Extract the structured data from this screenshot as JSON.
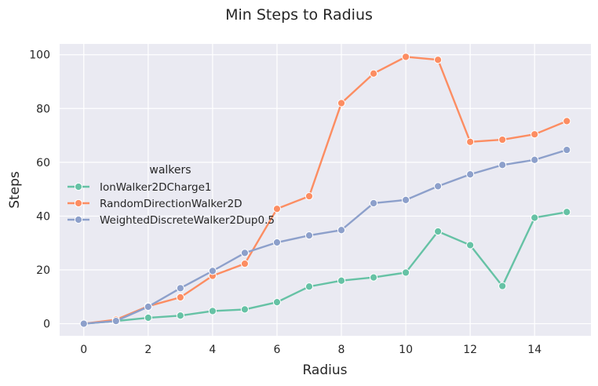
{
  "chart_data": {
    "type": "line",
    "title": "Min Steps to Radius",
    "xlabel": "Radius",
    "ylabel": "Steps",
    "xlim": [
      -0.75,
      15.75
    ],
    "ylim": [
      -4.5,
      104
    ],
    "xticks": [
      0,
      2,
      4,
      6,
      8,
      10,
      12,
      14
    ],
    "yticks": [
      0,
      20,
      40,
      60,
      80,
      100
    ],
    "grid": true,
    "background": "#eaeaf2",
    "legend": {
      "title": "walkers",
      "placement": "center-left"
    },
    "x": [
      0,
      1,
      2,
      3,
      4,
      5,
      6,
      7,
      8,
      9,
      10,
      11,
      12,
      13,
      14,
      15
    ],
    "series": [
      {
        "name": "IonWalker2DCharge1",
        "color": "#66c2a5",
        "values": [
          0,
          1,
          2.2,
          3,
          4.7,
          5.3,
          8,
          13.8,
          16,
          17.2,
          19,
          34.3,
          29.2,
          14,
          39.4,
          41.5
        ]
      },
      {
        "name": "RandomDirectionWalker2D",
        "color": "#fc8d62",
        "values": [
          0,
          1.5,
          6.5,
          9.8,
          17.8,
          22.3,
          42.7,
          47.4,
          82,
          93,
          99.2,
          98.1,
          67.6,
          68.4,
          70.4,
          75.3
        ]
      },
      {
        "name": "WeightedDiscreteWalker2Dup0.5",
        "color": "#8da0cb",
        "values": [
          0,
          1,
          6.3,
          13.2,
          19.6,
          26.3,
          30.2,
          32.8,
          34.8,
          44.8,
          46,
          51.1,
          55.5,
          59,
          60.9,
          64.6
        ]
      }
    ]
  }
}
